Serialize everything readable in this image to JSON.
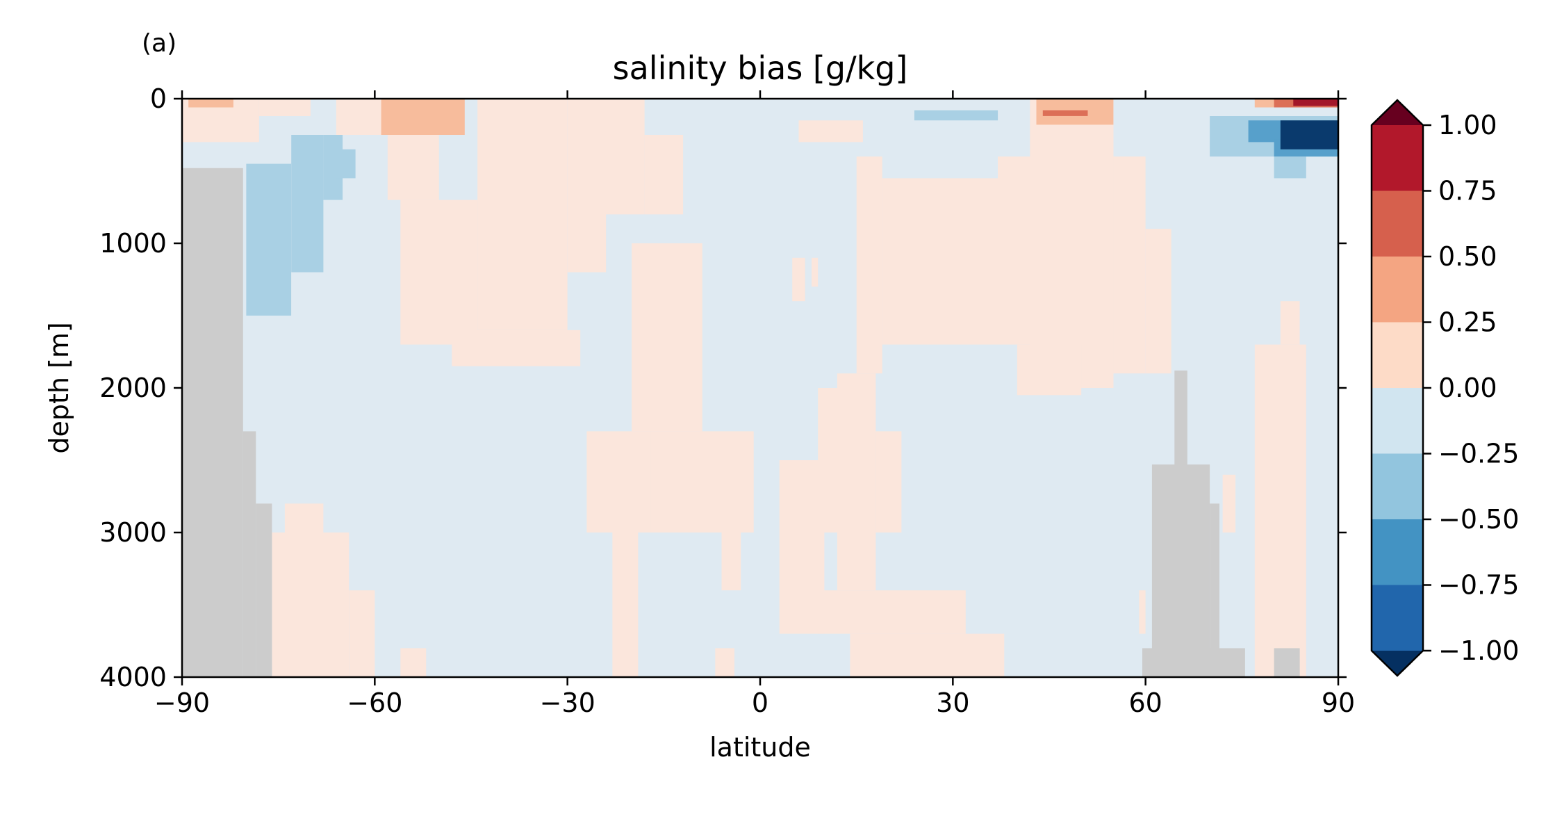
{
  "panel_label": "(a)",
  "chart_data": {
    "type": "heatmap",
    "title": "salinity bias [g/kg]",
    "xlabel": "latitude",
    "ylabel": "depth [m]",
    "xlim": [
      -90,
      90
    ],
    "ylim": [
      4000,
      0
    ],
    "xticks": [
      -90,
      -60,
      -30,
      0,
      30,
      60,
      90
    ],
    "xtick_labels": [
      "−90",
      "−60",
      "−30",
      "0",
      "30",
      "60",
      "90"
    ],
    "yticks": [
      0,
      1000,
      2000,
      3000,
      4000
    ],
    "ytick_labels": [
      "0",
      "1000",
      "2000",
      "3000",
      "4000"
    ],
    "grid": false,
    "colorbar": {
      "placement": "right",
      "extend": "both",
      "levels": [
        -1.0,
        -0.75,
        -0.5,
        -0.25,
        0.0,
        0.25,
        0.5,
        0.75,
        1.0
      ],
      "tick_labels": [
        "−1.00",
        "−0.75",
        "−0.50",
        "−0.25",
        "0.00",
        "0.25",
        "0.50",
        "0.75",
        "1.00"
      ],
      "colors": [
        "#053061",
        "#2166ac",
        "#4393c3",
        "#92c5de",
        "#d1e5f0",
        "#fddbc7",
        "#f4a582",
        "#d6604d",
        "#b2182b",
        "#67001f"
      ]
    },
    "region_colors": {
      "light_blue": "#dfeaf2",
      "mid_blue": "#a9d0e4",
      "blue": "#57a0cb",
      "dark_blue": "#0a3a6d",
      "light_red": "#fbe6dc",
      "mid_red": "#f7bc9c",
      "red": "#dc6f57",
      "dark_red": "#a3172a",
      "no_data": "#cccccc"
    },
    "background_bin": "light_blue",
    "regions": [
      {
        "bin": "light_red",
        "lat": [
          -90,
          -78
        ],
        "depth": [
          0,
          300
        ]
      },
      {
        "bin": "light_red",
        "lat": [
          -78,
          -70
        ],
        "depth": [
          0,
          120
        ]
      },
      {
        "bin": "light_red",
        "lat": [
          -66,
          -58
        ],
        "depth": [
          0,
          250
        ]
      },
      {
        "bin": "light_red",
        "lat": [
          -58,
          -50
        ],
        "depth": [
          0,
          700
        ]
      },
      {
        "bin": "light_red",
        "lat": [
          -56,
          -44
        ],
        "depth": [
          700,
          1700
        ]
      },
      {
        "bin": "light_red",
        "lat": [
          -44,
          -30
        ],
        "depth": [
          0,
          1600
        ]
      },
      {
        "bin": "light_red",
        "lat": [
          -30,
          -24
        ],
        "depth": [
          0,
          1200
        ]
      },
      {
        "bin": "light_red",
        "lat": [
          -26,
          -18
        ],
        "depth": [
          0,
          800
        ]
      },
      {
        "bin": "light_red",
        "lat": [
          -18,
          -12
        ],
        "depth": [
          250,
          800
        ]
      },
      {
        "bin": "light_red",
        "lat": [
          -48,
          -28
        ],
        "depth": [
          1600,
          1850
        ]
      },
      {
        "bin": "light_red",
        "lat": [
          -20,
          -9
        ],
        "depth": [
          1000,
          2300
        ]
      },
      {
        "bin": "light_red",
        "lat": [
          -27,
          -16
        ],
        "depth": [
          2300,
          3000
        ]
      },
      {
        "bin": "light_red",
        "lat": [
          -23,
          -19
        ],
        "depth": [
          3000,
          4000
        ]
      },
      {
        "bin": "light_red",
        "lat": [
          -17,
          -1
        ],
        "depth": [
          2300,
          3000
        ]
      },
      {
        "bin": "light_red",
        "lat": [
          -6,
          -3
        ],
        "depth": [
          3000,
          3400
        ]
      },
      {
        "bin": "light_red",
        "lat": [
          -7,
          -4
        ],
        "depth": [
          3800,
          4000
        ]
      },
      {
        "bin": "light_red",
        "lat": [
          -76,
          -64
        ],
        "depth": [
          3000,
          4000
        ]
      },
      {
        "bin": "light_red",
        "lat": [
          -74,
          -68
        ],
        "depth": [
          2800,
          3000
        ]
      },
      {
        "bin": "light_red",
        "lat": [
          -64,
          -60
        ],
        "depth": [
          3400,
          4000
        ]
      },
      {
        "bin": "light_red",
        "lat": [
          -56,
          -52
        ],
        "depth": [
          3800,
          4000
        ]
      },
      {
        "bin": "light_red",
        "lat": [
          3,
          10
        ],
        "depth": [
          2500,
          3700
        ]
      },
      {
        "bin": "light_red",
        "lat": [
          9,
          13
        ],
        "depth": [
          2000,
          3000
        ]
      },
      {
        "bin": "light_red",
        "lat": [
          12,
          18
        ],
        "depth": [
          1900,
          3400
        ]
      },
      {
        "bin": "light_red",
        "lat": [
          18,
          22
        ],
        "depth": [
          2300,
          3000
        ]
      },
      {
        "bin": "light_red",
        "lat": [
          9,
          32
        ],
        "depth": [
          3400,
          3700
        ]
      },
      {
        "bin": "light_red",
        "lat": [
          14,
          38
        ],
        "depth": [
          3700,
          4000
        ]
      },
      {
        "bin": "light_red",
        "lat": [
          5,
          7
        ],
        "depth": [
          1100,
          1400
        ]
      },
      {
        "bin": "light_red",
        "lat": [
          8,
          9
        ],
        "depth": [
          1100,
          1300
        ]
      },
      {
        "bin": "light_red",
        "lat": [
          6,
          16
        ],
        "depth": [
          150,
          300
        ]
      },
      {
        "bin": "light_red",
        "lat": [
          15,
          19
        ],
        "depth": [
          400,
          1900
        ]
      },
      {
        "bin": "light_red",
        "lat": [
          19,
          37
        ],
        "depth": [
          550,
          1700
        ]
      },
      {
        "bin": "light_red",
        "lat": [
          37,
          45
        ],
        "depth": [
          400,
          1700
        ]
      },
      {
        "bin": "light_red",
        "lat": [
          42,
          55
        ],
        "depth": [
          0,
          2000
        ]
      },
      {
        "bin": "light_red",
        "lat": [
          40,
          50
        ],
        "depth": [
          1700,
          2050
        ]
      },
      {
        "bin": "light_red",
        "lat": [
          55,
          60
        ],
        "depth": [
          400,
          1900
        ]
      },
      {
        "bin": "light_red",
        "lat": [
          60,
          64
        ],
        "depth": [
          900,
          1900
        ]
      },
      {
        "bin": "light_red",
        "lat": [
          77,
          85
        ],
        "depth": [
          1700,
          4000
        ]
      },
      {
        "bin": "light_red",
        "lat": [
          81,
          84
        ],
        "depth": [
          1400,
          1700
        ]
      },
      {
        "bin": "light_red",
        "lat": [
          72,
          74
        ],
        "depth": [
          2600,
          3000
        ]
      },
      {
        "bin": "light_red",
        "lat": [
          59,
          60
        ],
        "depth": [
          3400,
          3700
        ]
      },
      {
        "bin": "mid_red",
        "lat": [
          -89,
          -82
        ],
        "depth": [
          0,
          60
        ]
      },
      {
        "bin": "mid_red",
        "lat": [
          -59,
          -46
        ],
        "depth": [
          0,
          250
        ]
      },
      {
        "bin": "mid_red",
        "lat": [
          43,
          55
        ],
        "depth": [
          0,
          180
        ]
      },
      {
        "bin": "red",
        "lat": [
          44,
          51
        ],
        "depth": [
          80,
          120
        ]
      },
      {
        "bin": "mid_red",
        "lat": [
          77,
          90
        ],
        "depth": [
          0,
          60
        ]
      },
      {
        "bin": "red",
        "lat": [
          80,
          90
        ],
        "depth": [
          0,
          60
        ]
      },
      {
        "bin": "dark_red",
        "lat": [
          83,
          90
        ],
        "depth": [
          0,
          50
        ]
      },
      {
        "bin": "mid_blue",
        "lat": [
          -80,
          -73
        ],
        "depth": [
          450,
          1500
        ]
      },
      {
        "bin": "mid_blue",
        "lat": [
          -73,
          -68
        ],
        "depth": [
          250,
          1200
        ]
      },
      {
        "bin": "mid_blue",
        "lat": [
          -68,
          -65
        ],
        "depth": [
          250,
          700
        ]
      },
      {
        "bin": "mid_blue",
        "lat": [
          -66,
          -63
        ],
        "depth": [
          350,
          550
        ]
      },
      {
        "bin": "mid_blue",
        "lat": [
          24,
          37
        ],
        "depth": [
          80,
          150
        ]
      },
      {
        "bin": "mid_blue",
        "lat": [
          70,
          90
        ],
        "depth": [
          120,
          400
        ]
      },
      {
        "bin": "mid_blue",
        "lat": [
          80,
          85
        ],
        "depth": [
          400,
          550
        ]
      },
      {
        "bin": "blue",
        "lat": [
          76,
          90
        ],
        "depth": [
          150,
          300
        ]
      },
      {
        "bin": "blue",
        "lat": [
          80,
          90
        ],
        "depth": [
          280,
          400
        ]
      },
      {
        "bin": "dark_blue",
        "lat": [
          81,
          90
        ],
        "depth": [
          150,
          350
        ]
      },
      {
        "bin": "no_data",
        "lat": [
          -90,
          -80.5
        ],
        "depth": [
          480,
          4000
        ]
      },
      {
        "bin": "no_data",
        "lat": [
          -80.5,
          -78.5
        ],
        "depth": [
          2300,
          4000
        ]
      },
      {
        "bin": "no_data",
        "lat": [
          -78.5,
          -76
        ],
        "depth": [
          2800,
          4000
        ]
      },
      {
        "bin": "no_data",
        "lat": [
          64.5,
          66.5
        ],
        "depth": [
          1880,
          4000
        ]
      },
      {
        "bin": "no_data",
        "lat": [
          61,
          70
        ],
        "depth": [
          2530,
          4000
        ]
      },
      {
        "bin": "no_data",
        "lat": [
          70,
          71.5
        ],
        "depth": [
          2800,
          4000
        ]
      },
      {
        "bin": "no_data",
        "lat": [
          59.5,
          75.5
        ],
        "depth": [
          3800,
          4000
        ]
      },
      {
        "bin": "no_data",
        "lat": [
          80,
          84
        ],
        "depth": [
          3800,
          4000
        ]
      }
    ]
  }
}
